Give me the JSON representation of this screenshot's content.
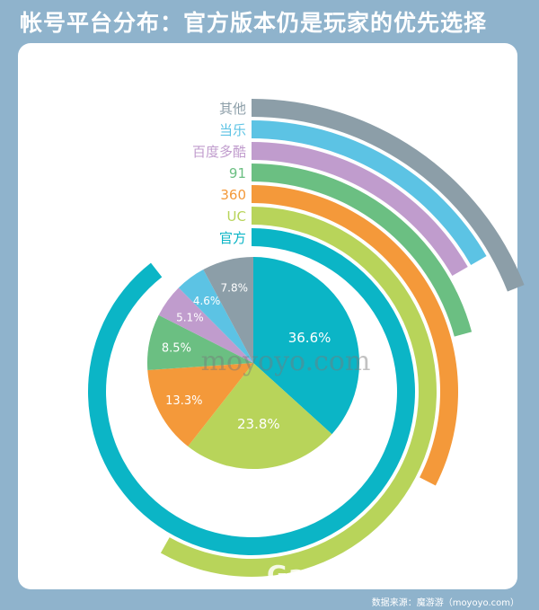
{
  "title": "帐号平台分布：官方版本仍是玩家的优先选择",
  "source": "数据来源：魔游游（moyoyo.com）",
  "watermark": "moyoyo.com",
  "watermark_site": "GameRes游资网",
  "chart_data": {
    "type": "pie",
    "title": "帐号平台分布：官方版本仍是玩家的优先选择",
    "series": [
      {
        "name": "官方",
        "value": 36.6,
        "label": "36.6%",
        "color": "#0bb5c6"
      },
      {
        "name": "UC",
        "value": 23.8,
        "label": "23.8%",
        "color": "#b8d45a"
      },
      {
        "name": "360",
        "value": 13.3,
        "label": "13.3%",
        "color": "#f4993a"
      },
      {
        "name": "91",
        "value": 8.5,
        "label": "8.5%",
        "color": "#6bbf82"
      },
      {
        "name": "百度多酷",
        "value": 5.1,
        "label": "5.1%",
        "color": "#c09ccd"
      },
      {
        "name": "当乐",
        "value": 4.6,
        "label": "4.6%",
        "color": "#5cc3e4"
      },
      {
        "name": "其他",
        "value": 7.8,
        "label": "7.8%",
        "color": "#8c9ea8"
      }
    ],
    "legend_order": [
      "其他",
      "当乐",
      "百度多酷",
      "91",
      "360",
      "UC",
      "官方"
    ]
  }
}
